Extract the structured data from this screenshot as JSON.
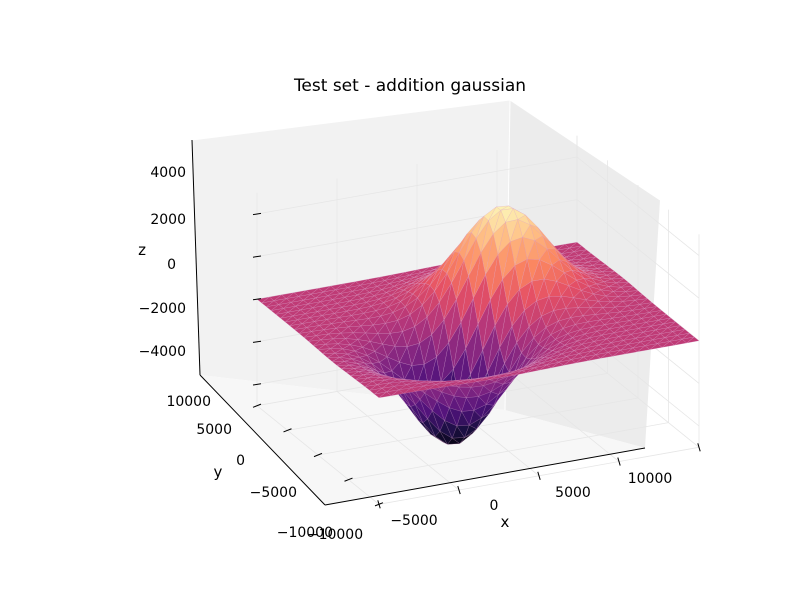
{
  "chart_data": {
    "type": "surface",
    "title": "Test set - addition gaussian",
    "xlabel": "x",
    "ylabel": "y",
    "zlabel": "z",
    "xlim": [
      -10000,
      10000
    ],
    "ylim": [
      -10000,
      10000
    ],
    "zlim": [
      -5000,
      5000
    ],
    "x_ticks": [
      -10000,
      -5000,
      0,
      5000,
      10000
    ],
    "y_ticks": [
      -10000,
      -5000,
      0,
      5000,
      10000
    ],
    "z_ticks": [
      -4000,
      -2000,
      0,
      2000,
      4000
    ],
    "x_tick_labels": [
      "−10000",
      "−5000",
      "0",
      "5000",
      "10000"
    ],
    "y_tick_labels": [
      "−10000",
      "−5000",
      "0",
      "5000",
      "10000"
    ],
    "z_tick_labels": [
      "−4000",
      "−2000",
      "0",
      "2000",
      "4000"
    ],
    "colormap": "magma",
    "grid": true,
    "surface": {
      "peak": {
        "x": 2500,
        "y": 2500,
        "z": 4500
      },
      "trough": {
        "x": -2500,
        "y": -2500,
        "z": -5000
      },
      "baseline_z": 0,
      "extent_x": [
        -10000,
        10000
      ],
      "extent_y": [
        -10000,
        10000
      ]
    }
  }
}
